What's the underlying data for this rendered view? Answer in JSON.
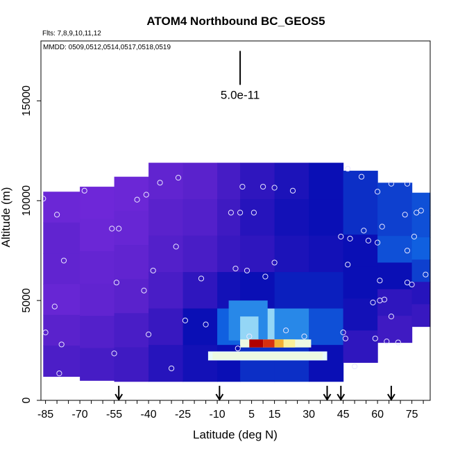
{
  "chart_data": {
    "type": "heatmap",
    "title": "ATOM4 Northbound BC_GEOS5",
    "subtitle_flights": "Flts: 7,8,9,10,11,12",
    "subtitle_dates": "MMDD: 0509,0512,0514,0517,0518,0519",
    "xlabel": "Latitude (deg N)",
    "ylabel": "Altitude (m)",
    "xlim": [
      -87,
      83
    ],
    "ylim": [
      0,
      18000
    ],
    "x_ticks": [
      -85,
      -70,
      -55,
      -40,
      -25,
      -10,
      5,
      15,
      30,
      45,
      60,
      75
    ],
    "x_tick_labels": [
      "-85",
      "-70",
      "-55",
      "-40",
      "-25",
      "-10",
      "5",
      "15",
      "30",
      "45",
      "60",
      "75"
    ],
    "y_ticks": [
      0,
      5000,
      10000,
      15000
    ],
    "y_tick_labels": [
      "0",
      "5000",
      "10000",
      "15000"
    ],
    "scale_bar_label": "5.0e-11",
    "color_scale": [
      "#7b2be0",
      "#5a22cc",
      "#3818c0",
      "#0a0fb5",
      "#1060e0",
      "#40b0f0",
      "#e8fbfb",
      "#ffef80",
      "#f0a020",
      "#d83010",
      "#b00000"
    ],
    "field_columns": [
      {
        "x0": -86,
        "x1": -70,
        "ytop": 10450,
        "ybot": 1200,
        "levels": [
          0.05,
          0.08,
          0.08,
          0.06,
          0.1,
          0.14
        ]
      },
      {
        "x0": -70,
        "x1": -55,
        "ytop": 10700,
        "ybot": 1000,
        "levels": [
          0.04,
          0.05,
          0.07,
          0.08,
          0.12,
          0.16
        ]
      },
      {
        "x0": -55,
        "x1": -40,
        "ytop": 11200,
        "ybot": 950,
        "levels": [
          0.05,
          0.06,
          0.08,
          0.1,
          0.15,
          0.18
        ]
      },
      {
        "x0": -40,
        "x1": -25,
        "ytop": 11900,
        "ybot": 950,
        "levels": [
          0.08,
          0.1,
          0.12,
          0.15,
          0.2,
          0.24
        ]
      },
      {
        "x0": -25,
        "x1": -10,
        "ytop": 11900,
        "ybot": 950,
        "levels": [
          0.1,
          0.12,
          0.15,
          0.22,
          0.3,
          0.28
        ]
      },
      {
        "x0": -10,
        "x1": 0,
        "ytop": 11900,
        "ybot": 950,
        "levels": [
          0.16,
          0.18,
          0.2,
          0.28,
          0.4,
          0.3
        ]
      },
      {
        "x0": 0,
        "x1": 15,
        "ytop": 11900,
        "ybot": 950,
        "levels": [
          0.22,
          0.24,
          0.22,
          0.3,
          0.55,
          0.34
        ]
      },
      {
        "x0": 15,
        "x1": 30,
        "ytop": 11900,
        "ybot": 950,
        "levels": [
          0.26,
          0.28,
          0.26,
          0.32,
          0.45,
          0.34
        ]
      },
      {
        "x0": 30,
        "x1": 45,
        "ytop": 11900,
        "ybot": 950,
        "levels": [
          0.3,
          0.3,
          0.28,
          0.32,
          0.38,
          0.3
        ]
      },
      {
        "x0": 45,
        "x1": 60,
        "ytop": 11500,
        "ybot": 1900,
        "levels": [
          0.34,
          0.34,
          0.3,
          0.3,
          0.28,
          0.22
        ]
      },
      {
        "x0": 60,
        "x1": 75,
        "ytop": 10900,
        "ybot": 2900,
        "levels": [
          0.36,
          0.36,
          0.38,
          0.3,
          0.22,
          0.18
        ]
      },
      {
        "x0": 75,
        "x1": 83,
        "ytop": 10400,
        "ybot": 3700,
        "levels": [
          0.38,
          0.38,
          0.4,
          0.36,
          0.24,
          0.2
        ]
      }
    ],
    "plumes": [
      {
        "x0": -5,
        "x1": 12,
        "y0": 3000,
        "y1": 5000,
        "level": 0.45
      },
      {
        "x0": 0,
        "x1": 8,
        "y0": 3000,
        "y1": 4200,
        "level": 0.55
      },
      {
        "x0": -14,
        "x1": 38,
        "y0": 2000,
        "y1": 2450,
        "level": 0.6
      },
      {
        "x0": -12,
        "x1": 36,
        "y0": 2050,
        "y1": 2400,
        "level": 0.62
      },
      {
        "x0": 0,
        "x1": 31,
        "y0": 2650,
        "y1": 3050,
        "level": 0.62
      },
      {
        "x0": 4,
        "x1": 10,
        "y0": 2650,
        "y1": 3050,
        "level": 1.0
      },
      {
        "x0": 10,
        "x1": 15,
        "y0": 2650,
        "y1": 3050,
        "level": 0.9
      },
      {
        "x0": 15,
        "x1": 19,
        "y0": 2650,
        "y1": 3050,
        "level": 0.78
      },
      {
        "x0": 19,
        "x1": 24,
        "y0": 2650,
        "y1": 3050,
        "level": 0.68
      }
    ],
    "flight_points": [
      {
        "x": -86,
        "y": 10100
      },
      {
        "x": -80,
        "y": 9300
      },
      {
        "x": -77,
        "y": 7000
      },
      {
        "x": -81,
        "y": 4700
      },
      {
        "x": -85,
        "y": 3400
      },
      {
        "x": -78,
        "y": 2800
      },
      {
        "x": -79,
        "y": 1350
      },
      {
        "x": -68,
        "y": 10500
      },
      {
        "x": -56,
        "y": 8600
      },
      {
        "x": -53,
        "y": 8600
      },
      {
        "x": -54,
        "y": 5900
      },
      {
        "x": -55,
        "y": 2350
      },
      {
        "x": -45,
        "y": 10050
      },
      {
        "x": -41,
        "y": 10300
      },
      {
        "x": -35,
        "y": 10900
      },
      {
        "x": -38,
        "y": 6500
      },
      {
        "x": -42,
        "y": 5500
      },
      {
        "x": -40,
        "y": 3300
      },
      {
        "x": -27,
        "y": 11150
      },
      {
        "x": -28,
        "y": 7700
      },
      {
        "x": -24,
        "y": 4000
      },
      {
        "x": -30,
        "y": 1600
      },
      {
        "x": -17,
        "y": 6100
      },
      {
        "x": -15,
        "y": 3800
      },
      {
        "x": -4,
        "y": 9400
      },
      {
        "x": 0,
        "y": 9400
      },
      {
        "x": -2,
        "y": 6600
      },
      {
        "x": 3,
        "y": 6500
      },
      {
        "x": 6,
        "y": 9400
      },
      {
        "x": 1,
        "y": 10700
      },
      {
        "x": 10,
        "y": 10700
      },
      {
        "x": 15,
        "y": 10650
      },
      {
        "x": 23,
        "y": 10500
      },
      {
        "x": 11,
        "y": 6200
      },
      {
        "x": 15,
        "y": 6900
      },
      {
        "x": 20,
        "y": 3500
      },
      {
        "x": 28,
        "y": 3200
      },
      {
        "x": 4,
        "y": 3200
      },
      {
        "x": -1,
        "y": 2600
      },
      {
        "x": 44,
        "y": 8200
      },
      {
        "x": 48,
        "y": 8100
      },
      {
        "x": 47,
        "y": 6800
      },
      {
        "x": 45,
        "y": 3400
      },
      {
        "x": 46,
        "y": 3100
      },
      {
        "x": 47,
        "y": 11600
      },
      {
        "x": 53,
        "y": 11200
      },
      {
        "x": 60,
        "y": 10450
      },
      {
        "x": 54,
        "y": 8500
      },
      {
        "x": 56,
        "y": 8000
      },
      {
        "x": 62,
        "y": 8700
      },
      {
        "x": 60,
        "y": 7900
      },
      {
        "x": 61,
        "y": 6000
      },
      {
        "x": 58,
        "y": 4900
      },
      {
        "x": 61,
        "y": 5000
      },
      {
        "x": 63,
        "y": 5050
      },
      {
        "x": 66,
        "y": 4200
      },
      {
        "x": 59,
        "y": 3100
      },
      {
        "x": 64,
        "y": 2950
      },
      {
        "x": 66,
        "y": 10850
      },
      {
        "x": 73,
        "y": 10850
      },
      {
        "x": 72,
        "y": 9300
      },
      {
        "x": 77,
        "y": 9400
      },
      {
        "x": 79,
        "y": 9500
      },
      {
        "x": 76,
        "y": 8200
      },
      {
        "x": 73,
        "y": 7500
      },
      {
        "x": 73,
        "y": 5900
      },
      {
        "x": 75,
        "y": 5800
      },
      {
        "x": 81,
        "y": 6300
      },
      {
        "x": 69,
        "y": 2900
      },
      {
        "x": 50,
        "y": 1700
      }
    ],
    "arrow_latitudes": [
      -53,
      -9,
      38,
      44,
      66
    ],
    "scale_bar": {
      "x": 0,
      "y_top": 17500,
      "y_bottom": 15800
    }
  }
}
